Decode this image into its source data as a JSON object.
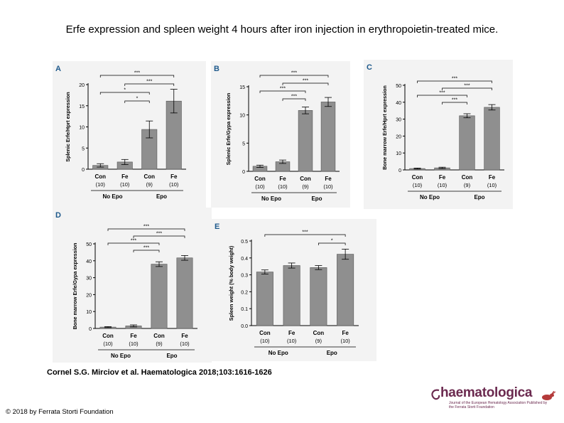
{
  "slide": {
    "title": "Erfe expression and spleen weight 4 hours after iron injection in erythropoietin-treated mice.",
    "citation": "Cornel S.G. Mirciov et al. Haematologica 2018;103:1616-1626",
    "copyright": "© 2018 by Ferrata Storti Foundation",
    "logo_text": "haematologica",
    "logo_subtext": "Journal of the European Hematology Association Published by the Ferrata Storti Foundation"
  },
  "colors": {
    "bar": "#8f8f8f",
    "panel_bg": "#f3f3f3",
    "letter": "#1f5a8c",
    "logo": "#6b2a4f"
  },
  "chart_data": [
    {
      "id": "A",
      "type": "bar",
      "letter": "A",
      "ylabel": "Splenic Erfe/Hprt expression",
      "ylim": [
        0,
        20
      ],
      "yticks": [
        "0",
        "5",
        "10",
        "15",
        "20"
      ],
      "ytick_values": [
        0,
        5,
        10,
        15,
        20
      ],
      "categories": [
        "Con",
        "Fe",
        "Con",
        "Fe"
      ],
      "ns": [
        "(10)",
        "(10)",
        "(9)",
        "(10)"
      ],
      "values": [
        0.9,
        1.7,
        9.4,
        16.1
      ],
      "errors": [
        0.4,
        0.6,
        2.0,
        2.8
      ],
      "groups": [
        "No Epo",
        "Epo"
      ],
      "significance": [
        {
          "from": 0,
          "to": 3,
          "label": "***"
        },
        {
          "from": 1,
          "to": 3,
          "label": "***"
        },
        {
          "from": 0,
          "to": 2,
          "label": "*"
        },
        {
          "from": 1,
          "to": 2,
          "label": "*"
        }
      ]
    },
    {
      "id": "B",
      "type": "bar",
      "letter": "B",
      "ylabel": "Splenic Erfe/Gypa expression",
      "ylim": [
        0,
        15
      ],
      "yticks": [
        "0",
        "5",
        "10",
        "15"
      ],
      "ytick_values": [
        0,
        5,
        10,
        15
      ],
      "categories": [
        "Con",
        "Fe",
        "Con",
        "Fe"
      ],
      "ns": [
        "(10)",
        "(10)",
        "(9)",
        "(10)"
      ],
      "values": [
        0.9,
        1.7,
        10.8,
        12.3
      ],
      "errors": [
        0.2,
        0.3,
        0.6,
        0.8
      ],
      "groups": [
        "No Epo",
        "Epo"
      ],
      "significance": [
        {
          "from": 0,
          "to": 3,
          "label": "***"
        },
        {
          "from": 1,
          "to": 3,
          "label": "***"
        },
        {
          "from": 0,
          "to": 2,
          "label": "***"
        },
        {
          "from": 1,
          "to": 2,
          "label": "***"
        }
      ]
    },
    {
      "id": "C",
      "type": "bar",
      "letter": "C",
      "ylabel": "Bone marrow Erfe/Hprt expression",
      "ylim": [
        0,
        50
      ],
      "yticks": [
        "0",
        "10",
        "20",
        "30",
        "40",
        "50"
      ],
      "ytick_values": [
        0,
        10,
        20,
        30,
        40,
        50
      ],
      "categories": [
        "Con",
        "Fe",
        "Con",
        "Fe"
      ],
      "ns": [
        "(10)",
        "(10)",
        "(9)",
        "(10)"
      ],
      "values": [
        0.8,
        1.2,
        32.0,
        37.0
      ],
      "errors": [
        0.3,
        0.4,
        1.2,
        1.6
      ],
      "groups": [
        "No Epo",
        "Epo"
      ],
      "significance": [
        {
          "from": 0,
          "to": 3,
          "label": "***"
        },
        {
          "from": 1,
          "to": 3,
          "label": "***"
        },
        {
          "from": 0,
          "to": 2,
          "label": "***"
        },
        {
          "from": 1,
          "to": 2,
          "label": "***"
        }
      ]
    },
    {
      "id": "D",
      "type": "bar",
      "letter": "D",
      "ylabel": "Bone marrow Erfe/Gypa expression",
      "ylim": [
        0,
        50
      ],
      "yticks": [
        "0",
        "10",
        "20",
        "30",
        "40",
        "50"
      ],
      "ytick_values": [
        0,
        10,
        20,
        30,
        40,
        50
      ],
      "categories": [
        "Con",
        "Fe",
        "Con",
        "Fe"
      ],
      "ns": [
        "(10)",
        "(10)",
        "(9)",
        "(10)"
      ],
      "values": [
        0.8,
        1.5,
        38.0,
        41.7
      ],
      "errors": [
        0.3,
        0.6,
        1.4,
        1.4
      ],
      "groups": [
        "No Epo",
        "Epo"
      ],
      "significance": [
        {
          "from": 0,
          "to": 3,
          "label": "***"
        },
        {
          "from": 1,
          "to": 3,
          "label": "***"
        },
        {
          "from": 0,
          "to": 2,
          "label": "***"
        },
        {
          "from": 1,
          "to": 2,
          "label": "***"
        }
      ]
    },
    {
      "id": "E",
      "type": "bar",
      "letter": "E",
      "ylabel": "Spleen weight (% body weight)",
      "ylim": [
        0,
        0.5
      ],
      "yticks": [
        "0.0",
        "0.1",
        "0.2",
        "0.3",
        "0.4",
        "0.5"
      ],
      "ytick_values": [
        0,
        0.1,
        0.2,
        0.3,
        0.4,
        0.5
      ],
      "categories": [
        "Con",
        "Fe",
        "Con",
        "Fe"
      ],
      "ns": [
        "(10)",
        "(10)",
        "(9)",
        "(10)"
      ],
      "values": [
        0.317,
        0.355,
        0.343,
        0.422
      ],
      "errors": [
        0.012,
        0.015,
        0.012,
        0.03
      ],
      "groups": [
        "No Epo",
        "Epo"
      ],
      "significance": [
        {
          "from": 0,
          "to": 3,
          "label": "***"
        },
        {
          "from": 2,
          "to": 3,
          "label": "*"
        }
      ]
    }
  ]
}
